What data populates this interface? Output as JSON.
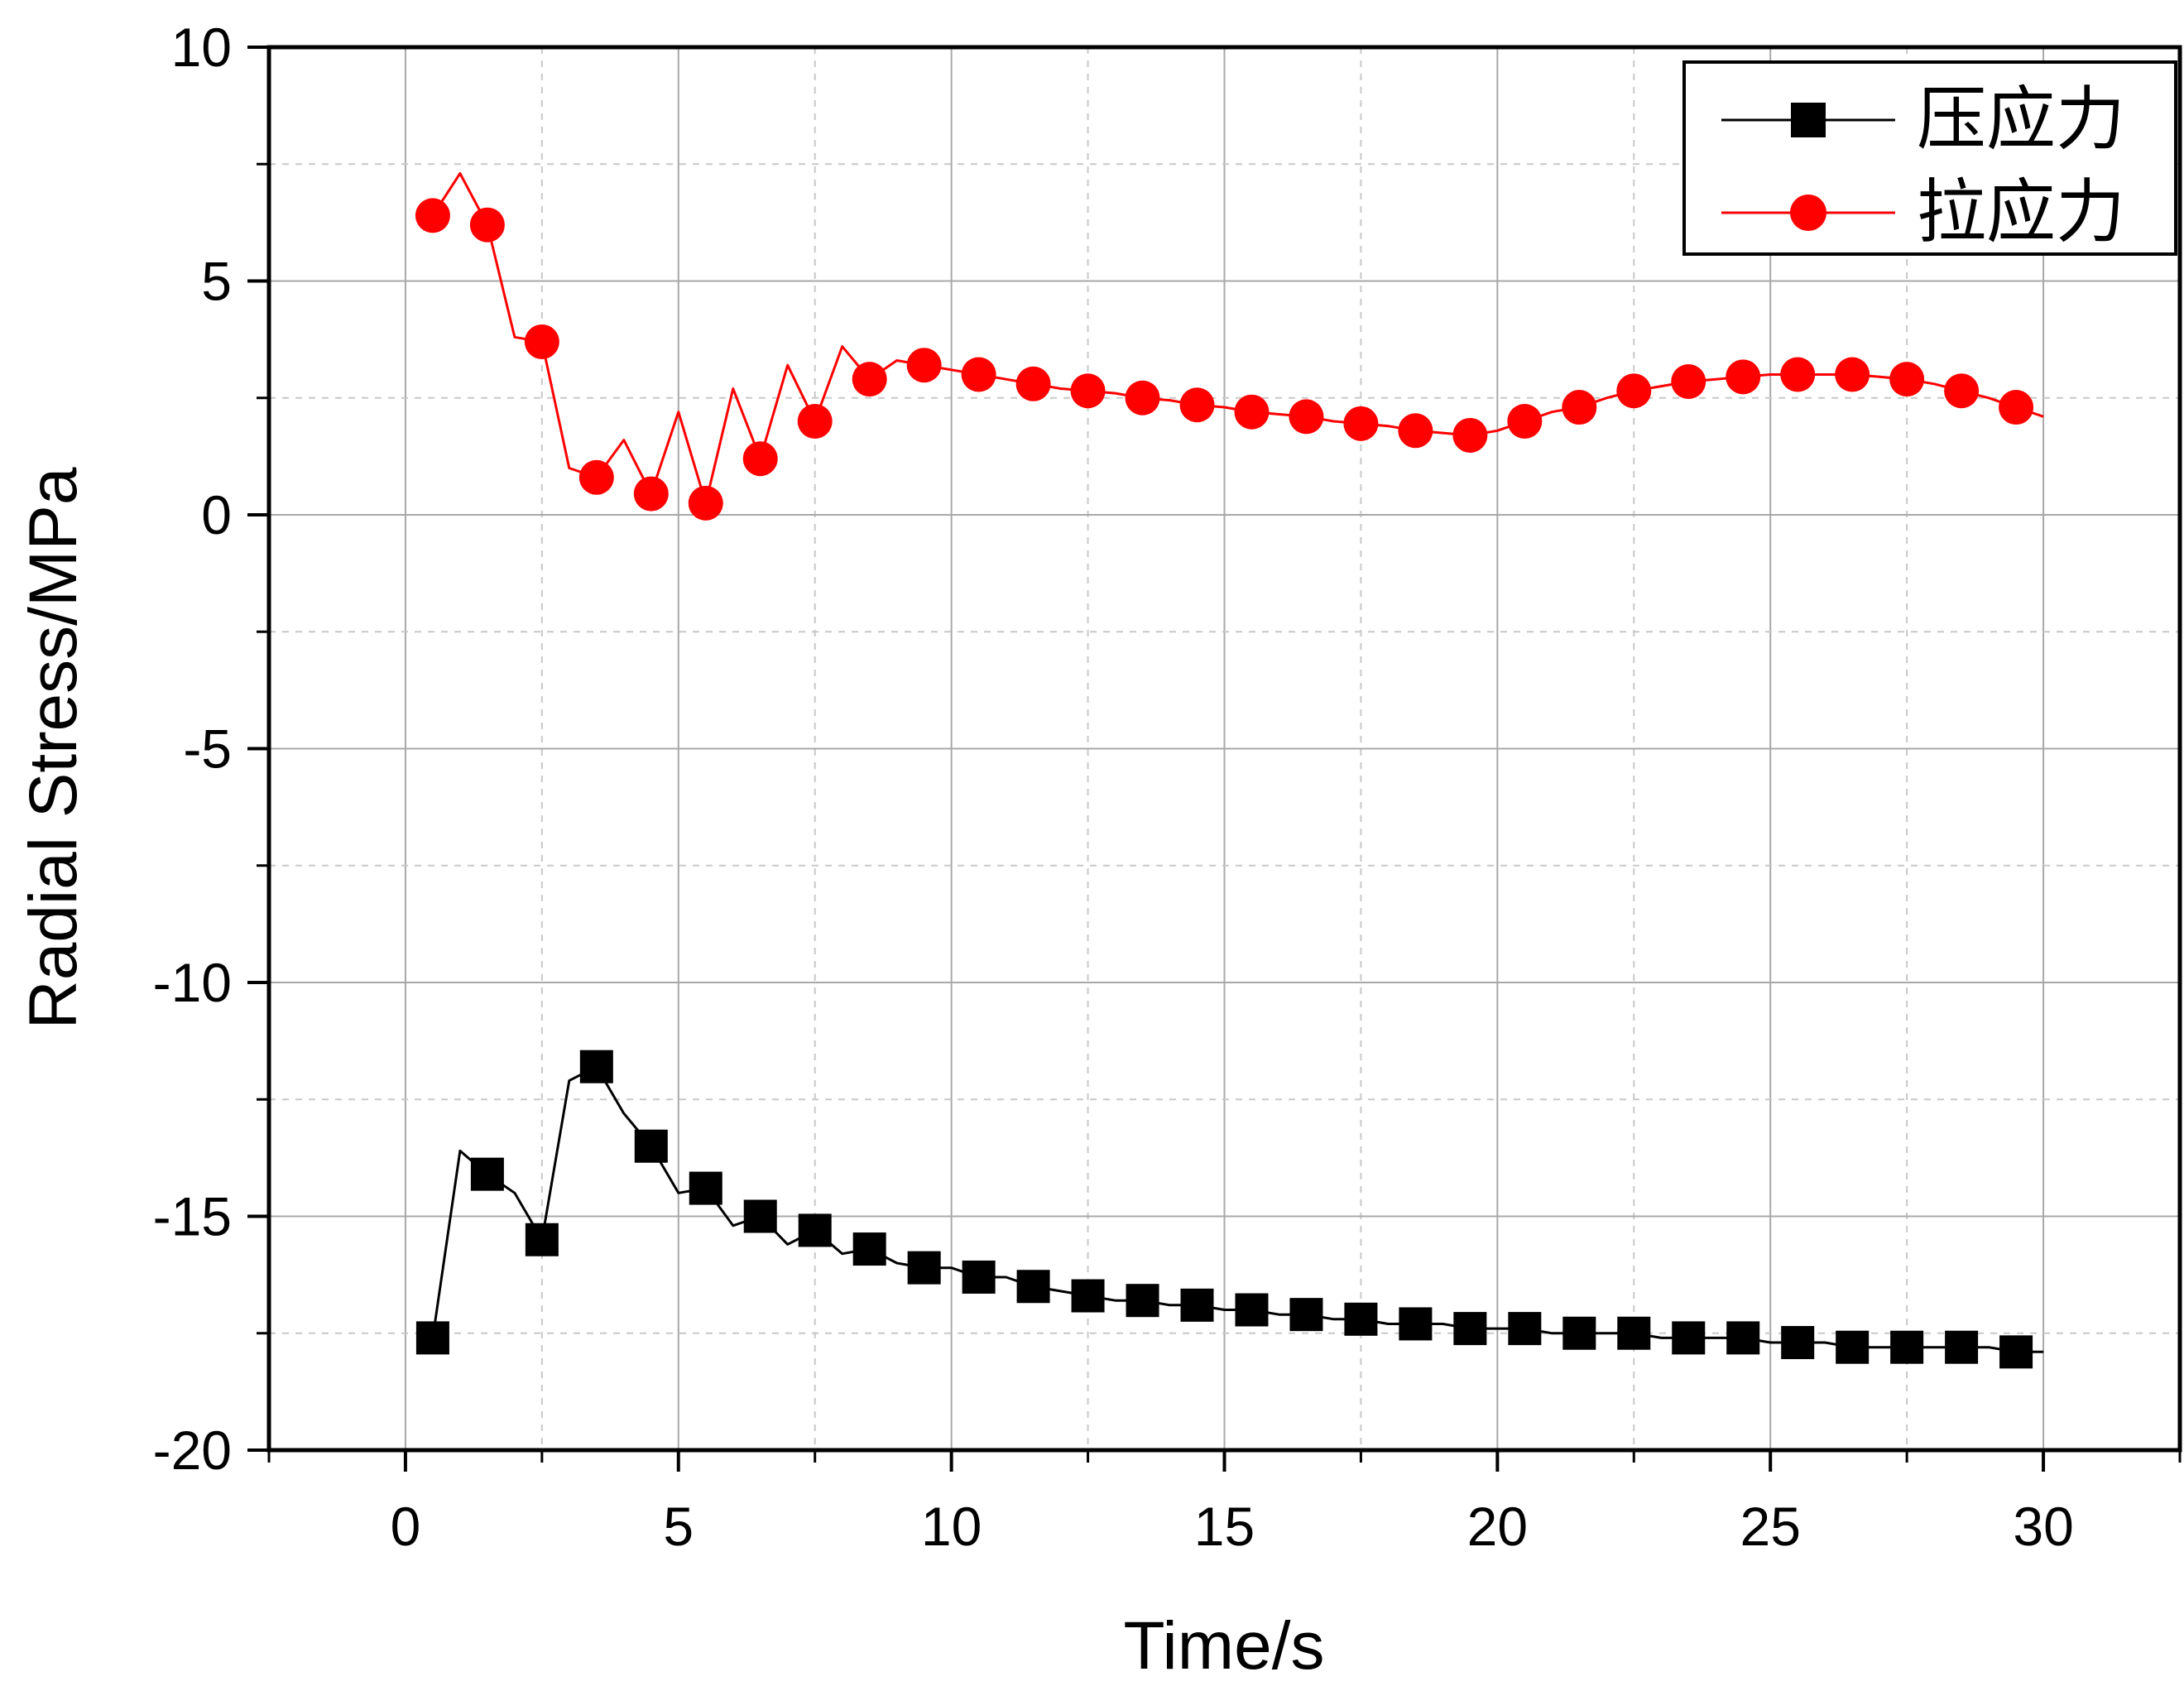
{
  "chart_data": {
    "type": "line",
    "title": "",
    "xlabel": "Time/s",
    "ylabel": "Radial Stress/MPa",
    "xlim": [
      -2.5,
      32.5
    ],
    "ylim": [
      -20,
      10
    ],
    "xticks": [
      0,
      5,
      10,
      15,
      20,
      25,
      30
    ],
    "yticks": [
      10,
      5,
      0,
      -5,
      -10,
      -15,
      -20
    ],
    "xtick_labels": [
      "0",
      "5",
      "10",
      "15",
      "20",
      "25",
      "30"
    ],
    "ytick_labels": [
      "10",
      "5",
      "0",
      "-5",
      "-10",
      "-15",
      "-20"
    ],
    "grid": true,
    "legend_position": "top-right",
    "series": [
      {
        "name": "压应力",
        "color": "#000000",
        "marker": "square",
        "line_x": [
          0.5,
          1,
          1.5,
          2,
          2.5,
          3,
          3.5,
          4,
          4.5,
          5,
          5.5,
          6,
          6.5,
          7,
          7.5,
          8,
          8.5,
          9,
          9.5,
          10,
          10.5,
          11,
          11.5,
          12,
          12.5,
          13,
          13.5,
          14,
          14.5,
          15,
          15.5,
          16,
          16.5,
          17,
          17.5,
          18,
          18.5,
          19,
          19.5,
          20,
          20.5,
          21,
          21.5,
          22,
          22.5,
          23,
          23.5,
          24,
          24.5,
          25,
          25.5,
          26,
          26.5,
          27,
          27.5,
          28,
          28.5,
          29,
          29.5,
          30
        ],
        "line_y": [
          -17.6,
          -13.6,
          -14.1,
          -14.5,
          -15.5,
          -12.1,
          -11.8,
          -12.8,
          -13.5,
          -14.5,
          -14.4,
          -15.2,
          -15.0,
          -15.6,
          -15.3,
          -15.8,
          -15.7,
          -16.0,
          -16.1,
          -16.1,
          -16.3,
          -16.3,
          -16.5,
          -16.6,
          -16.7,
          -16.8,
          -16.8,
          -16.9,
          -16.9,
          -17.0,
          -17.0,
          -17.1,
          -17.1,
          -17.2,
          -17.2,
          -17.3,
          -17.3,
          -17.3,
          -17.4,
          -17.4,
          -17.4,
          -17.5,
          -17.5,
          -17.5,
          -17.5,
          -17.6,
          -17.6,
          -17.6,
          -17.6,
          -17.7,
          -17.7,
          -17.7,
          -17.8,
          -17.8,
          -17.8,
          -17.8,
          -17.8,
          -17.8,
          -17.9,
          -17.9
        ],
        "marker_x": [
          0.5,
          1.5,
          2.5,
          3.5,
          4.5,
          5.5,
          6.5,
          7.5,
          8.5,
          9.5,
          10.5,
          11.5,
          12.5,
          13.5,
          14.5,
          15.5,
          16.5,
          17.5,
          18.5,
          19.5,
          20.5,
          21.5,
          22.5,
          23.5,
          24.5,
          25.5,
          26.5,
          27.5,
          28.5,
          29.5
        ],
        "marker_y": [
          -17.6,
          -14.1,
          -15.5,
          -11.8,
          -13.5,
          -14.4,
          -15.0,
          -15.3,
          -15.7,
          -16.1,
          -16.3,
          -16.5,
          -16.7,
          -16.8,
          -16.9,
          -17.0,
          -17.1,
          -17.2,
          -17.3,
          -17.4,
          -17.4,
          -17.5,
          -17.5,
          -17.6,
          -17.6,
          -17.7,
          -17.8,
          -17.8,
          -17.8,
          -17.9
        ]
      },
      {
        "name": "拉应力",
        "color": "#ff0000",
        "marker": "circle",
        "line_x": [
          0.5,
          1,
          1.5,
          2,
          2.5,
          3,
          3.5,
          4,
          4.5,
          5,
          5.5,
          6,
          6.5,
          7,
          7.5,
          8,
          8.5,
          9,
          9.5,
          10,
          10.5,
          11,
          11.5,
          12,
          12.5,
          13,
          13.5,
          14,
          14.5,
          15,
          15.5,
          16,
          16.5,
          17,
          17.5,
          18,
          18.5,
          19,
          19.5,
          20,
          20.5,
          21,
          21.5,
          22,
          22.5,
          23,
          23.5,
          24,
          24.5,
          25,
          25.5,
          26,
          26.5,
          27,
          27.5,
          28,
          28.5,
          29,
          29.5,
          30
        ],
        "line_y": [
          6.4,
          7.3,
          6.2,
          3.8,
          3.7,
          1.0,
          0.8,
          1.6,
          0.45,
          2.2,
          0.25,
          2.7,
          1.2,
          3.2,
          2.0,
          3.6,
          2.9,
          3.3,
          3.2,
          3.1,
          3.0,
          2.9,
          2.8,
          2.7,
          2.65,
          2.6,
          2.5,
          2.45,
          2.35,
          2.3,
          2.2,
          2.15,
          2.1,
          2.0,
          1.95,
          1.9,
          1.8,
          1.75,
          1.7,
          1.8,
          2.0,
          2.2,
          2.3,
          2.5,
          2.65,
          2.75,
          2.85,
          2.9,
          2.95,
          3.0,
          3.0,
          3.0,
          3.0,
          2.95,
          2.9,
          2.8,
          2.65,
          2.5,
          2.3,
          2.1
        ],
        "marker_x": [
          0.5,
          1.5,
          2.5,
          3.5,
          4.5,
          5.5,
          6.5,
          7.5,
          8.5,
          9.5,
          10.5,
          11.5,
          12.5,
          13.5,
          14.5,
          15.5,
          16.5,
          17.5,
          18.5,
          19.5,
          20.5,
          21.5,
          22.5,
          23.5,
          24.5,
          25.5,
          26.5,
          27.5,
          28.5,
          29.5
        ],
        "marker_y": [
          6.4,
          6.2,
          3.7,
          0.8,
          0.45,
          0.25,
          1.2,
          2.0,
          2.9,
          3.2,
          3.0,
          2.8,
          2.65,
          2.5,
          2.35,
          2.2,
          2.1,
          1.95,
          1.8,
          1.7,
          2.0,
          2.3,
          2.65,
          2.85,
          2.95,
          3.0,
          3.0,
          2.9,
          2.65,
          2.3
        ]
      }
    ]
  }
}
